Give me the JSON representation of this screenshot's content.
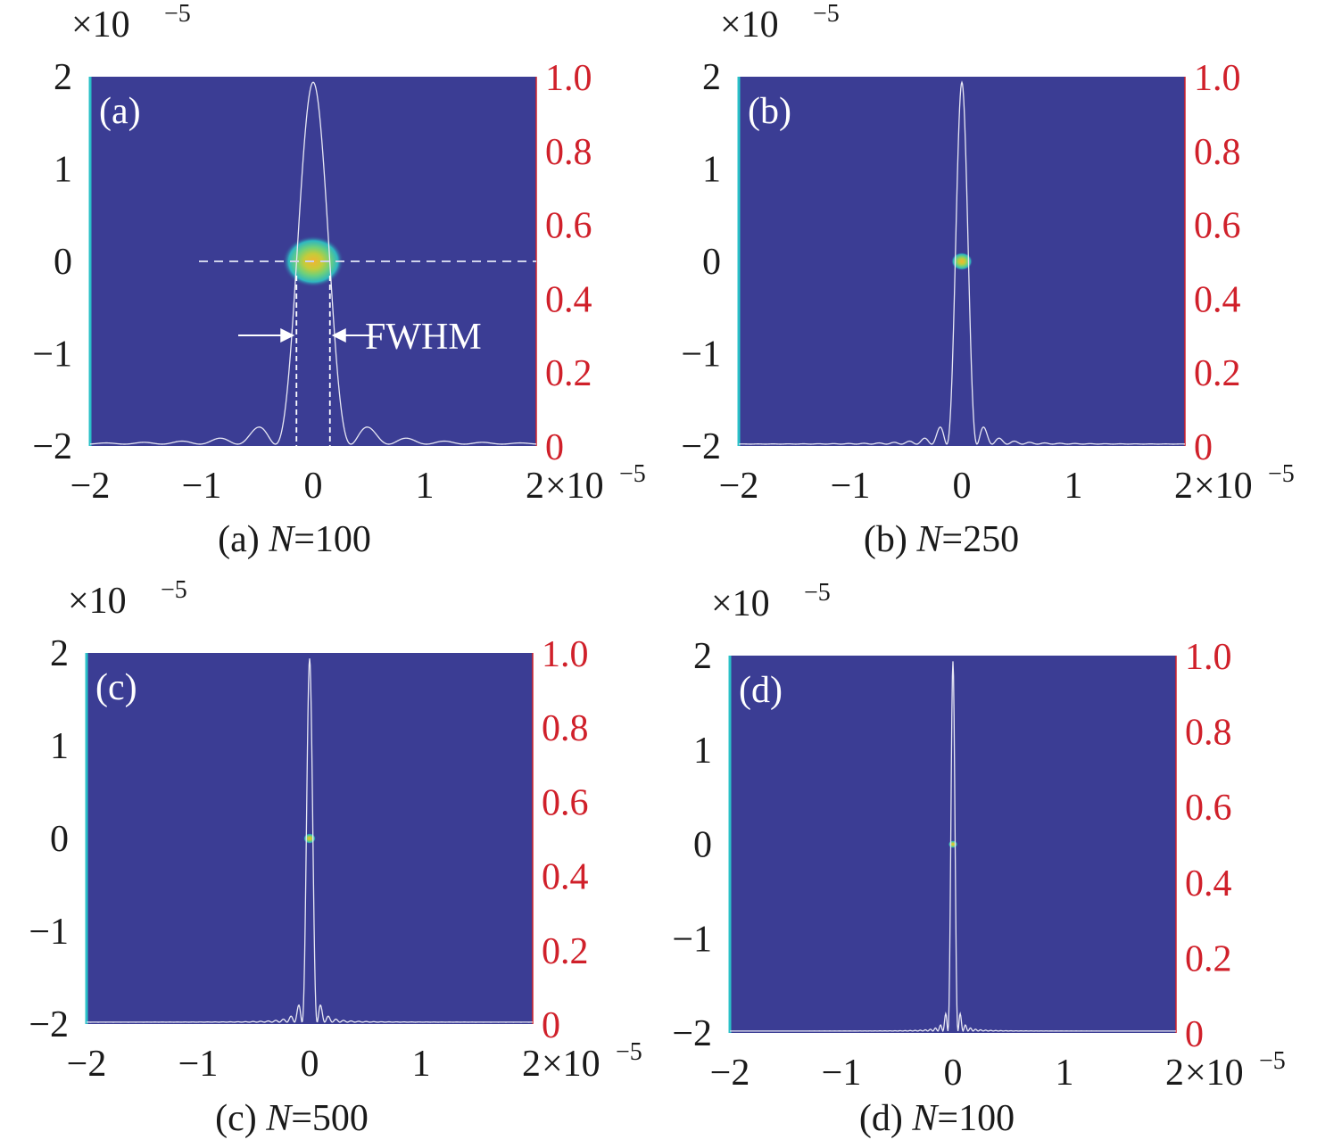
{
  "chart_data": [
    {
      "type": "heatmap",
      "panel_label": "(a)",
      "caption_prefix": "(a) ",
      "caption_n": "N",
      "caption_suffix": "=100",
      "N": 100,
      "fwhm_label": "FWHM",
      "x_ticks": [
        "−2",
        "−1",
        "0",
        "1",
        "2"
      ],
      "y_ticks": [
        "2",
        "1",
        "0",
        "−1",
        "−2"
      ],
      "y2_ticks": [
        "1.0",
        "0.8",
        "0.6",
        "0.4",
        "0.2",
        "0"
      ],
      "x_exponent": "×10",
      "x_exponent_power": "−5",
      "y_exponent": "×10",
      "y_exponent_power": "−5",
      "xlim": [
        -2,
        2
      ],
      "ylim": [
        -2,
        2
      ],
      "y2lim": [
        0,
        1
      ],
      "spot_center": [
        0,
        0
      ],
      "spot_radius": 0.2,
      "profile_fwhm": 0.3,
      "show_fwhm_annotation": true
    },
    {
      "type": "heatmap",
      "panel_label": "(b)",
      "caption_prefix": "(b) ",
      "caption_n": "N",
      "caption_suffix": "=250",
      "N": 250,
      "x_ticks": [
        "−2",
        "−1",
        "0",
        "1",
        "2"
      ],
      "y_ticks": [
        "2",
        "1",
        "0",
        "−1",
        "−2"
      ],
      "y2_ticks": [
        "1.0",
        "0.8",
        "0.6",
        "0.4",
        "0.2",
        "0"
      ],
      "x_exponent": "×10",
      "x_exponent_power": "−5",
      "y_exponent": "×10",
      "y_exponent_power": "−5",
      "xlim": [
        -2,
        2
      ],
      "ylim": [
        -2,
        2
      ],
      "y2lim": [
        0,
        1
      ],
      "spot_center": [
        0,
        0
      ],
      "spot_radius": 0.07,
      "profile_fwhm": 0.12,
      "show_fwhm_annotation": false
    },
    {
      "type": "heatmap",
      "panel_label": "(c)",
      "caption_prefix": "(c) ",
      "caption_n": "N",
      "caption_suffix": "=500",
      "N": 500,
      "x_ticks": [
        "−2",
        "−1",
        "0",
        "1",
        "2"
      ],
      "y_ticks": [
        "2",
        "1",
        "0",
        "−1",
        "−2"
      ],
      "y2_ticks": [
        "1.0",
        "0.8",
        "0.6",
        "0.4",
        "0.2",
        "0"
      ],
      "x_exponent": "×10",
      "x_exponent_power": "−5",
      "y_exponent": "×10",
      "y_exponent_power": "−5",
      "xlim": [
        -2,
        2
      ],
      "ylim": [
        -2,
        2
      ],
      "y2lim": [
        0,
        1
      ],
      "spot_center": [
        0,
        0
      ],
      "spot_radius": 0.04,
      "profile_fwhm": 0.06,
      "show_fwhm_annotation": false
    },
    {
      "type": "heatmap",
      "panel_label": "(d)",
      "caption_prefix": "(d) ",
      "caption_n": "N",
      "caption_suffix": "=100",
      "N": 100,
      "x_ticks": [
        "−2",
        "−1",
        "0",
        "1",
        "2"
      ],
      "y_ticks": [
        "2",
        "1",
        "0",
        "−1",
        "−2"
      ],
      "y2_ticks": [
        "1.0",
        "0.8",
        "0.6",
        "0.4",
        "0.2",
        "0"
      ],
      "x_exponent": "×10",
      "x_exponent_power": "−5",
      "y_exponent": "×10",
      "y_exponent_power": "−5",
      "xlim": [
        -2,
        2
      ],
      "ylim": [
        -2,
        2
      ],
      "y2lim": [
        0,
        1
      ],
      "spot_center": [
        0,
        0
      ],
      "spot_radius": 0.03,
      "profile_fwhm": 0.04,
      "show_fwhm_annotation": false
    }
  ],
  "colors": {
    "background": "#3b3d94",
    "spot_core": "#f2b531",
    "spot_mid": "#9fd34a",
    "spot_outer": "#3fbfb0",
    "profile_line": "#e8e8f4",
    "right_axis": "#d0202a",
    "left_axis": "#2bc1c8"
  }
}
